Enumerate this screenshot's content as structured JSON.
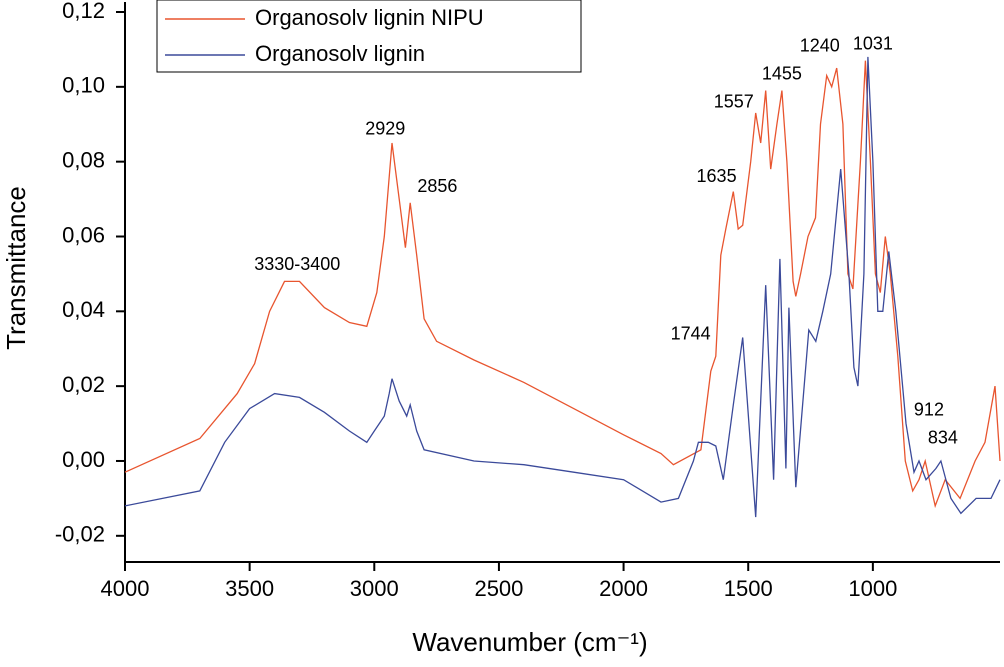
{
  "chart_data": {
    "type": "line",
    "xlabel": "Wavenumber (cm⁻¹)",
    "ylabel": "Transmittance",
    "xlim": [
      4000,
      490
    ],
    "ylim": [
      -0.027,
      0.12
    ],
    "xticks": [
      4000,
      3500,
      3000,
      2500,
      2000,
      1500,
      1000
    ],
    "yticks": [
      {
        "value": -0.02,
        "label": "-0,02"
      },
      {
        "value": 0,
        "label": "0,00"
      },
      {
        "value": 0.02,
        "label": "0,02"
      },
      {
        "value": 0.04,
        "label": "0,04"
      },
      {
        "value": 0.06,
        "label": "0,06"
      },
      {
        "value": 0.08,
        "label": "0,08"
      },
      {
        "value": 0.1,
        "label": "0,10"
      },
      {
        "value": 0.12,
        "label": "0,12"
      }
    ],
    "legend": "upper left",
    "series": [
      {
        "name": "Organosolv lignin NIPU",
        "color": "#e8552f",
        "x": [
          4000,
          3700,
          3550,
          3480,
          3420,
          3360,
          3300,
          3200,
          3100,
          3030,
          2990,
          2960,
          2929,
          2900,
          2875,
          2856,
          2830,
          2800,
          2750,
          2600,
          2400,
          2200,
          2000,
          1850,
          1800,
          1690,
          1650,
          1630,
          1610,
          1590,
          1560,
          1540,
          1522,
          1490,
          1470,
          1450,
          1430,
          1410,
          1385,
          1365,
          1345,
          1320,
          1309,
          1290,
          1260,
          1230,
          1210,
          1185,
          1165,
          1145,
          1120,
          1100,
          1080,
          1050,
          1030,
          1010,
          990,
          970,
          950,
          930,
          900,
          870,
          840,
          815,
          790,
          750,
          710,
          650,
          590,
          550,
          510,
          490
        ],
        "values": [
          -0.003,
          0.006,
          0.018,
          0.026,
          0.04,
          0.048,
          0.048,
          0.041,
          0.037,
          0.036,
          0.045,
          0.06,
          0.085,
          0.07,
          0.057,
          0.069,
          0.055,
          0.038,
          0.032,
          0.027,
          0.021,
          0.014,
          0.007,
          0.002,
          -0.001,
          0.003,
          0.024,
          0.028,
          0.055,
          0.062,
          0.072,
          0.062,
          0.063,
          0.08,
          0.093,
          0.085,
          0.099,
          0.078,
          0.09,
          0.099,
          0.08,
          0.048,
          0.044,
          0.05,
          0.06,
          0.065,
          0.09,
          0.103,
          0.1,
          0.105,
          0.09,
          0.05,
          0.046,
          0.08,
          0.107,
          0.08,
          0.05,
          0.045,
          0.06,
          0.05,
          0.028,
          0.0,
          -0.008,
          -0.005,
          0.0,
          -0.012,
          -0.005,
          -0.01,
          0.0,
          0.005,
          0.02,
          0.0
        ]
      },
      {
        "name": "Organosolv lignin",
        "color": "#3b4a9a",
        "x": [
          4000,
          3700,
          3600,
          3500,
          3400,
          3300,
          3200,
          3100,
          3030,
          3000,
          2960,
          2940,
          2929,
          2900,
          2870,
          2856,
          2830,
          2800,
          2600,
          2400,
          2200,
          2000,
          1850,
          1780,
          1720,
          1700,
          1660,
          1630,
          1600,
          1560,
          1522,
          1470,
          1430,
          1398,
          1373,
          1349,
          1337,
          1309,
          1257,
          1229,
          1201,
          1169,
          1129,
          1096,
          1076,
          1060,
          1036,
          1020,
          1000,
          980,
          960,
          936,
          908,
          867,
          835,
          815,
          787,
          747,
          727,
          687,
          647,
          586,
          526,
          490
        ],
        "values": [
          -0.012,
          -0.008,
          0.005,
          0.014,
          0.018,
          0.017,
          0.013,
          0.008,
          0.005,
          0.008,
          0.012,
          0.018,
          0.022,
          0.016,
          0.012,
          0.015,
          0.008,
          0.003,
          0.0,
          -0.001,
          -0.003,
          -0.005,
          -0.011,
          -0.01,
          0.0,
          0.005,
          0.005,
          0.004,
          -0.005,
          0.015,
          0.033,
          -0.015,
          0.047,
          -0.005,
          0.054,
          -0.002,
          0.041,
          -0.007,
          0.035,
          0.032,
          0.04,
          0.05,
          0.078,
          0.05,
          0.025,
          0.02,
          0.05,
          0.108,
          0.08,
          0.04,
          0.04,
          0.056,
          0.04,
          0.01,
          -0.003,
          0.0,
          -0.005,
          -0.002,
          0.0,
          -0.01,
          -0.014,
          -0.01,
          -0.01,
          -0.005
        ]
      }
    ],
    "annotations": [
      {
        "text": "3330-3400",
        "x": 3309,
        "y": 0.0523
      },
      {
        "text": "2929",
        "x": 2956,
        "y": 0.0885
      },
      {
        "text": "2856",
        "x": 2747,
        "y": 0.0732
      },
      {
        "text": "1744",
        "x": 1731,
        "y": 0.0338
      },
      {
        "text": "1635",
        "x": 1627,
        "y": 0.0759
      },
      {
        "text": "1557",
        "x": 1558,
        "y": 0.0957
      },
      {
        "text": "1455",
        "x": 1365,
        "y": 0.1032
      },
      {
        "text": "1240",
        "x": 1213,
        "y": 0.1107
      },
      {
        "text": "1031",
        "x": 1000,
        "y": 0.1113
      },
      {
        "text": "912",
        "x": 775,
        "y": 0.0134
      },
      {
        "text": "834",
        "x": 719,
        "y": 0.0059
      }
    ]
  }
}
